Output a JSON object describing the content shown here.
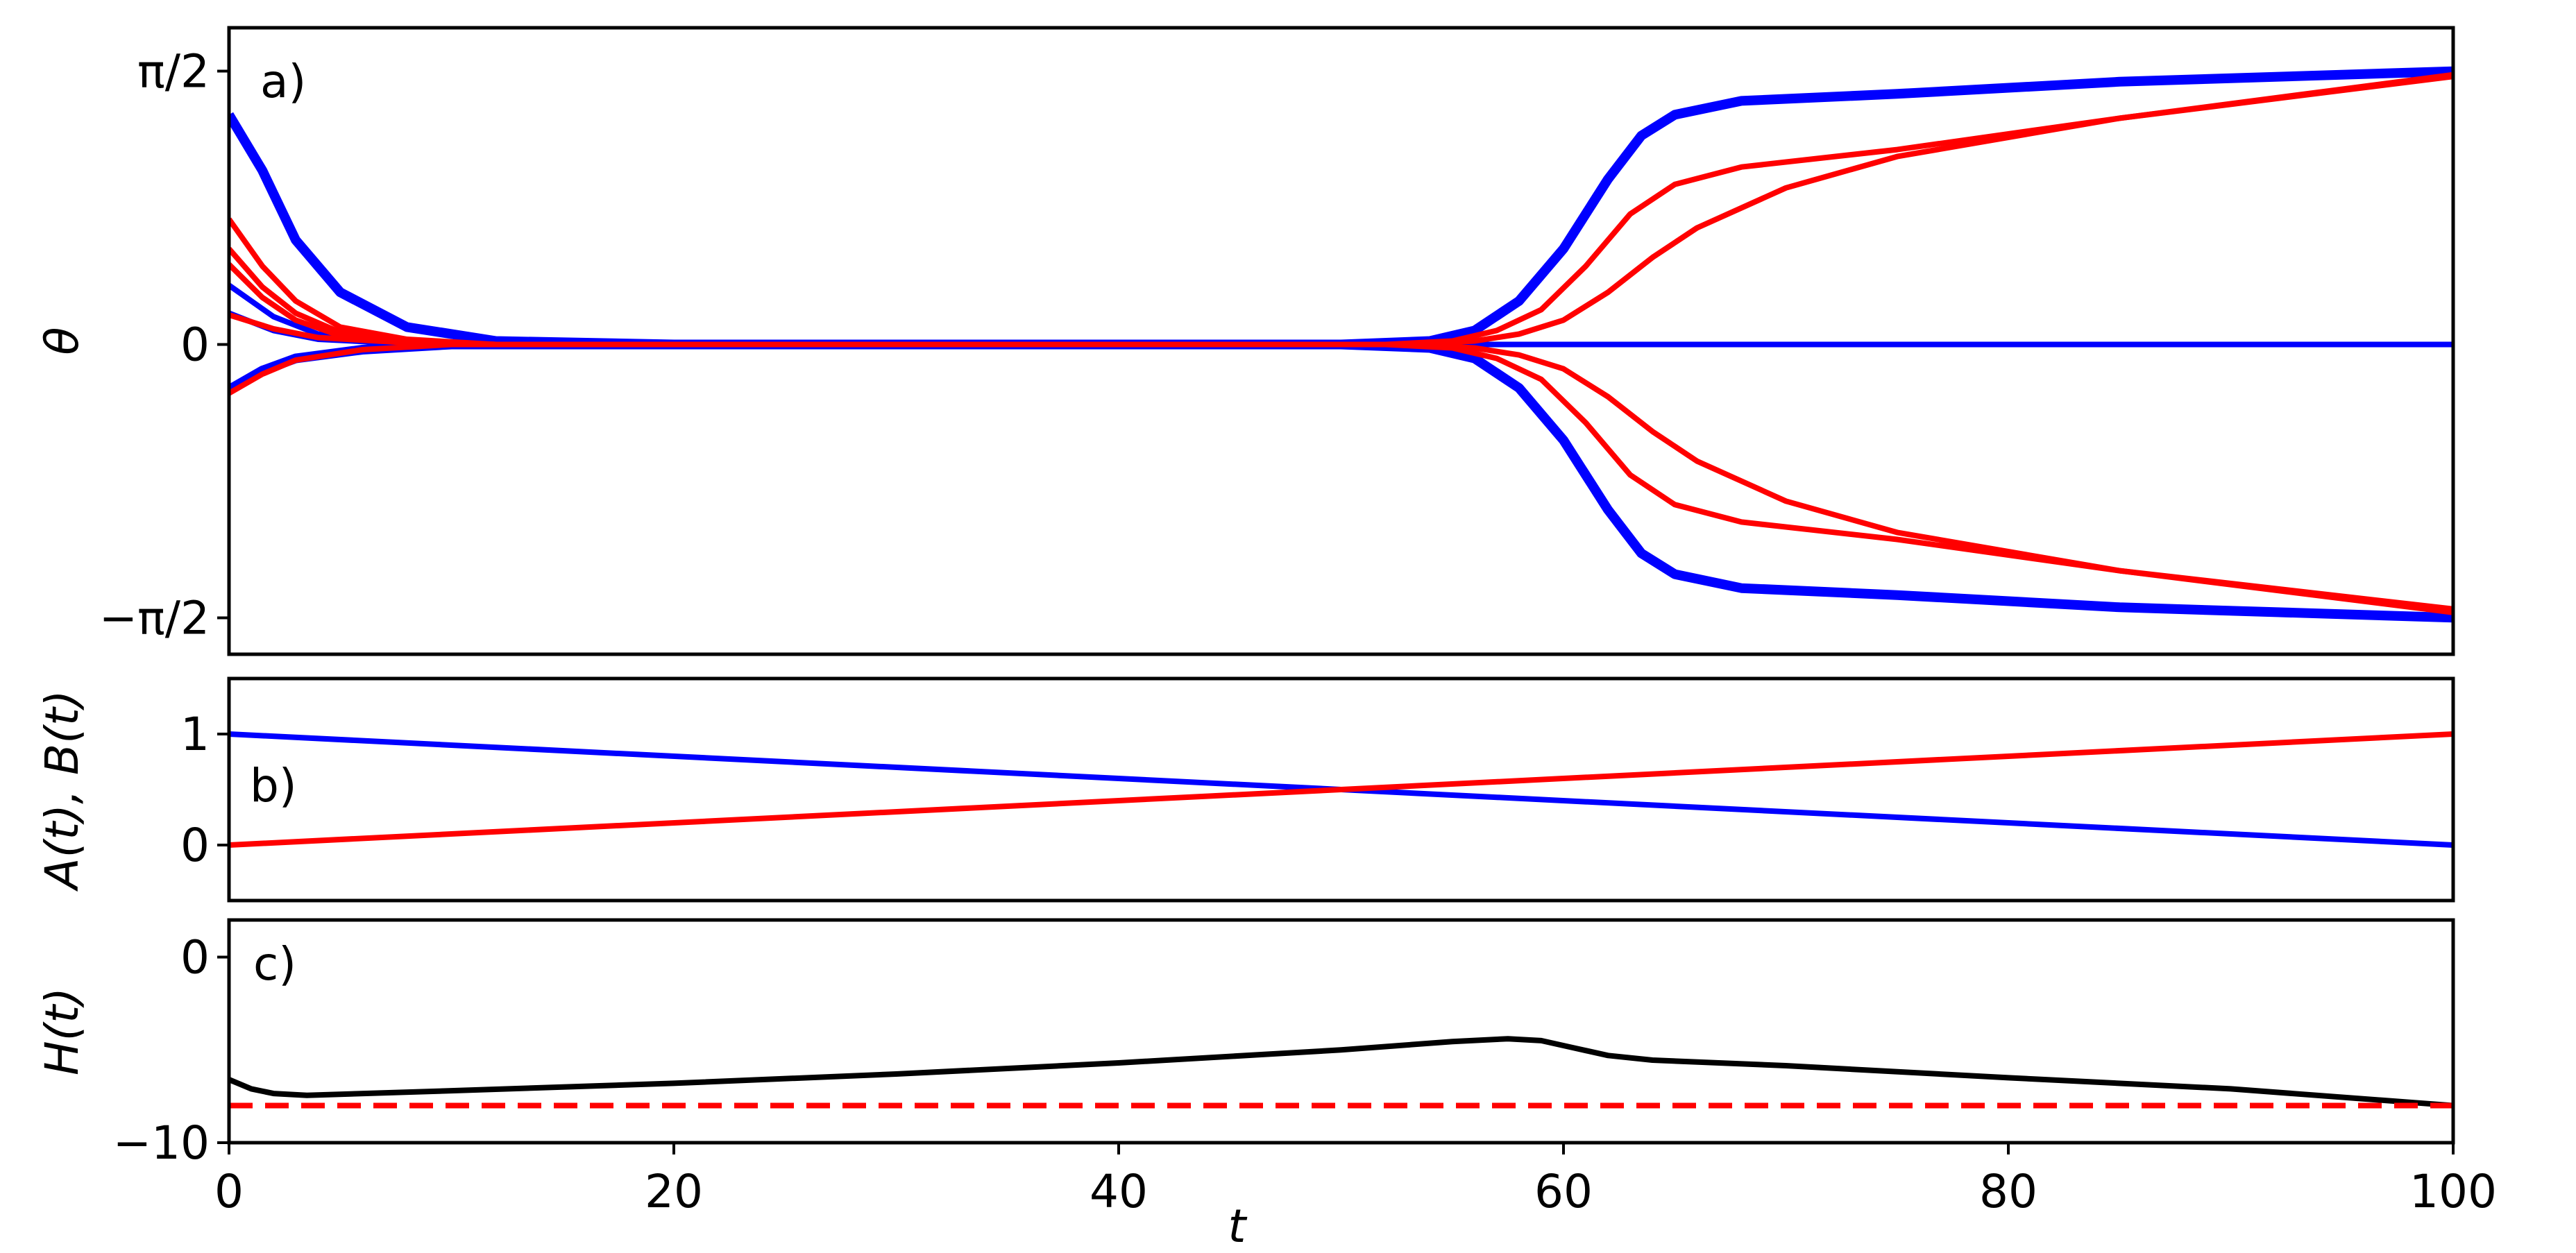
{
  "chart_data": [
    {
      "type": "line",
      "panel_label": "a)",
      "xlabel": "",
      "ylabel": "θ",
      "xlim": [
        0,
        100
      ],
      "ylim": [
        -1.78,
        1.82
      ],
      "yticks": [
        {
          "value": 1.5708,
          "label": "π/2"
        },
        {
          "value": 0,
          "label": "0"
        },
        {
          "value": -1.5708,
          "label": "−π/2"
        }
      ],
      "colors": {
        "blue": "#0000ff",
        "red": "#ff0000"
      },
      "series": [
        {
          "color": "#0000ff",
          "thick": true,
          "points": [
            [
              0,
              1.32
            ],
            [
              1.5,
              1.0
            ],
            [
              3,
              0.6
            ],
            [
              5,
              0.3
            ],
            [
              8,
              0.1
            ],
            [
              12,
              0.02
            ],
            [
              20,
              0
            ],
            [
              50,
              0
            ],
            [
              54,
              0.02
            ],
            [
              56,
              0.08
            ],
            [
              58,
              0.25
            ],
            [
              60,
              0.55
            ],
            [
              62,
              0.95
            ],
            [
              63.5,
              1.2
            ],
            [
              65,
              1.32
            ],
            [
              68,
              1.4
            ],
            [
              75,
              1.44
            ],
            [
              85,
              1.51
            ],
            [
              100,
              1.57
            ]
          ]
        },
        {
          "color": "#0000ff",
          "thick": true,
          "points": [
            [
              0,
              -0.26
            ],
            [
              1.5,
              -0.15
            ],
            [
              3,
              -0.08
            ],
            [
              6,
              -0.03
            ],
            [
              10,
              0
            ],
            [
              50,
              0
            ],
            [
              54,
              -0.02
            ],
            [
              56,
              -0.08
            ],
            [
              58,
              -0.25
            ],
            [
              60,
              -0.55
            ],
            [
              62,
              -0.95
            ],
            [
              63.5,
              -1.2
            ],
            [
              65,
              -1.32
            ],
            [
              68,
              -1.4
            ],
            [
              75,
              -1.44
            ],
            [
              85,
              -1.51
            ],
            [
              100,
              -1.57
            ]
          ]
        },
        {
          "color": "#0000ff",
          "thick": false,
          "points": [
            [
              0,
              0.34
            ],
            [
              2,
              0.16
            ],
            [
              4,
              0.06
            ],
            [
              8,
              0.01
            ],
            [
              14,
              0
            ],
            [
              100,
              0
            ]
          ]
        },
        {
          "color": "#0000ff",
          "thick": false,
          "points": [
            [
              0,
              0.18
            ],
            [
              2,
              0.08
            ],
            [
              4,
              0.03
            ],
            [
              8,
              0.005
            ],
            [
              14,
              0
            ],
            [
              60,
              0
            ]
          ]
        },
        {
          "color": "#ff0000",
          "thick": false,
          "points": [
            [
              0,
              0.72
            ],
            [
              1.5,
              0.45
            ],
            [
              3,
              0.25
            ],
            [
              5,
              0.1
            ],
            [
              8,
              0.03
            ],
            [
              12,
              0
            ],
            [
              52,
              0
            ],
            [
              55,
              0.02
            ],
            [
              57,
              0.08
            ],
            [
              59,
              0.2
            ],
            [
              61,
              0.45
            ],
            [
              63,
              0.75
            ],
            [
              65,
              0.92
            ],
            [
              68,
              1.02
            ],
            [
              75,
              1.12
            ],
            [
              85,
              1.3
            ],
            [
              100,
              1.55
            ]
          ]
        },
        {
          "color": "#ff0000",
          "thick": false,
          "points": [
            [
              0,
              0.55
            ],
            [
              1.5,
              0.33
            ],
            [
              3,
              0.18
            ],
            [
              5,
              0.07
            ],
            [
              8,
              0.02
            ],
            [
              12,
              0
            ],
            [
              53,
              0
            ],
            [
              56,
              0.02
            ],
            [
              58,
              0.06
            ],
            [
              60,
              0.14
            ],
            [
              62,
              0.3
            ],
            [
              64,
              0.5
            ],
            [
              66,
              0.67
            ],
            [
              70,
              0.9
            ],
            [
              75,
              1.08
            ],
            [
              85,
              1.3
            ],
            [
              100,
              1.54
            ]
          ]
        },
        {
          "color": "#ff0000",
          "thick": false,
          "points": [
            [
              0,
              0.46
            ],
            [
              1.5,
              0.27
            ],
            [
              3,
              0.14
            ],
            [
              5,
              0.05
            ],
            [
              8,
              0.01
            ],
            [
              12,
              0
            ],
            [
              55,
              0
            ]
          ]
        },
        {
          "color": "#ff0000",
          "thick": false,
          "points": [
            [
              0,
              0.17
            ],
            [
              2,
              0.09
            ],
            [
              4,
              0.04
            ],
            [
              8,
              0.01
            ],
            [
              12,
              0
            ],
            [
              55,
              0
            ]
          ]
        },
        {
          "color": "#ff0000",
          "thick": false,
          "points": [
            [
              0,
              -0.28
            ],
            [
              1.5,
              -0.17
            ],
            [
              3,
              -0.09
            ],
            [
              6,
              -0.03
            ],
            [
              10,
              0
            ],
            [
              52,
              0
            ],
            [
              55,
              -0.02
            ],
            [
              57,
              -0.08
            ],
            [
              59,
              -0.2
            ],
            [
              61,
              -0.45
            ],
            [
              63,
              -0.75
            ],
            [
              65,
              -0.92
            ],
            [
              68,
              -1.02
            ],
            [
              75,
              -1.12
            ],
            [
              85,
              -1.3
            ],
            [
              100,
              -1.54
            ]
          ]
        },
        {
          "color": "#ff0000",
          "thick": false,
          "points": [
            [
              53,
              0
            ],
            [
              56,
              -0.02
            ],
            [
              58,
              -0.06
            ],
            [
              60,
              -0.14
            ],
            [
              62,
              -0.3
            ],
            [
              64,
              -0.5
            ],
            [
              66,
              -0.67
            ],
            [
              70,
              -0.9
            ],
            [
              75,
              -1.08
            ],
            [
              85,
              -1.3
            ],
            [
              100,
              -1.52
            ]
          ]
        }
      ]
    },
    {
      "type": "line",
      "panel_label": "b)",
      "xlabel": "",
      "ylabel": "A(t), B(t)",
      "xlim": [
        0,
        100
      ],
      "ylim": [
        -0.5,
        1.5
      ],
      "yticks": [
        {
          "value": 1,
          "label": "1"
        },
        {
          "value": 0,
          "label": "0"
        }
      ],
      "series": [
        {
          "color": "#0000ff",
          "thick": false,
          "points": [
            [
              0,
              1
            ],
            [
              100,
              0
            ]
          ]
        },
        {
          "color": "#ff0000",
          "thick": false,
          "points": [
            [
              0,
              0
            ],
            [
              100,
              1
            ]
          ]
        }
      ]
    },
    {
      "type": "line",
      "panel_label": "c)",
      "xlabel": "t",
      "ylabel": "H(t)",
      "xlim": [
        0,
        100
      ],
      "ylim": [
        -10,
        2
      ],
      "yticks": [
        {
          "value": 0,
          "label": "0"
        },
        {
          "value": -10,
          "label": "−10"
        }
      ],
      "xticks": [
        {
          "value": 0,
          "label": "0"
        },
        {
          "value": 20,
          "label": "20"
        },
        {
          "value": 40,
          "label": "40"
        },
        {
          "value": 60,
          "label": "60"
        },
        {
          "value": 80,
          "label": "80"
        },
        {
          "value": 100,
          "label": "100"
        }
      ],
      "series": [
        {
          "color": "#000000",
          "dashed": false,
          "thick": false,
          "points": [
            [
              0,
              -6.6
            ],
            [
              1,
              -7.1
            ],
            [
              2,
              -7.35
            ],
            [
              3.5,
              -7.45
            ],
            [
              10,
              -7.2
            ],
            [
              20,
              -6.8
            ],
            [
              30,
              -6.3
            ],
            [
              40,
              -5.7
            ],
            [
              50,
              -5.0
            ],
            [
              55,
              -4.55
            ],
            [
              57.5,
              -4.4
            ],
            [
              59,
              -4.5
            ],
            [
              60.5,
              -4.9
            ],
            [
              62,
              -5.3
            ],
            [
              64,
              -5.55
            ],
            [
              70,
              -5.85
            ],
            [
              80,
              -6.5
            ],
            [
              90,
              -7.1
            ],
            [
              100,
              -8.0
            ]
          ]
        },
        {
          "color": "#ff0000",
          "dashed": true,
          "thick": false,
          "points": [
            [
              0,
              -8.0
            ],
            [
              100,
              -8.0
            ]
          ]
        }
      ]
    }
  ]
}
